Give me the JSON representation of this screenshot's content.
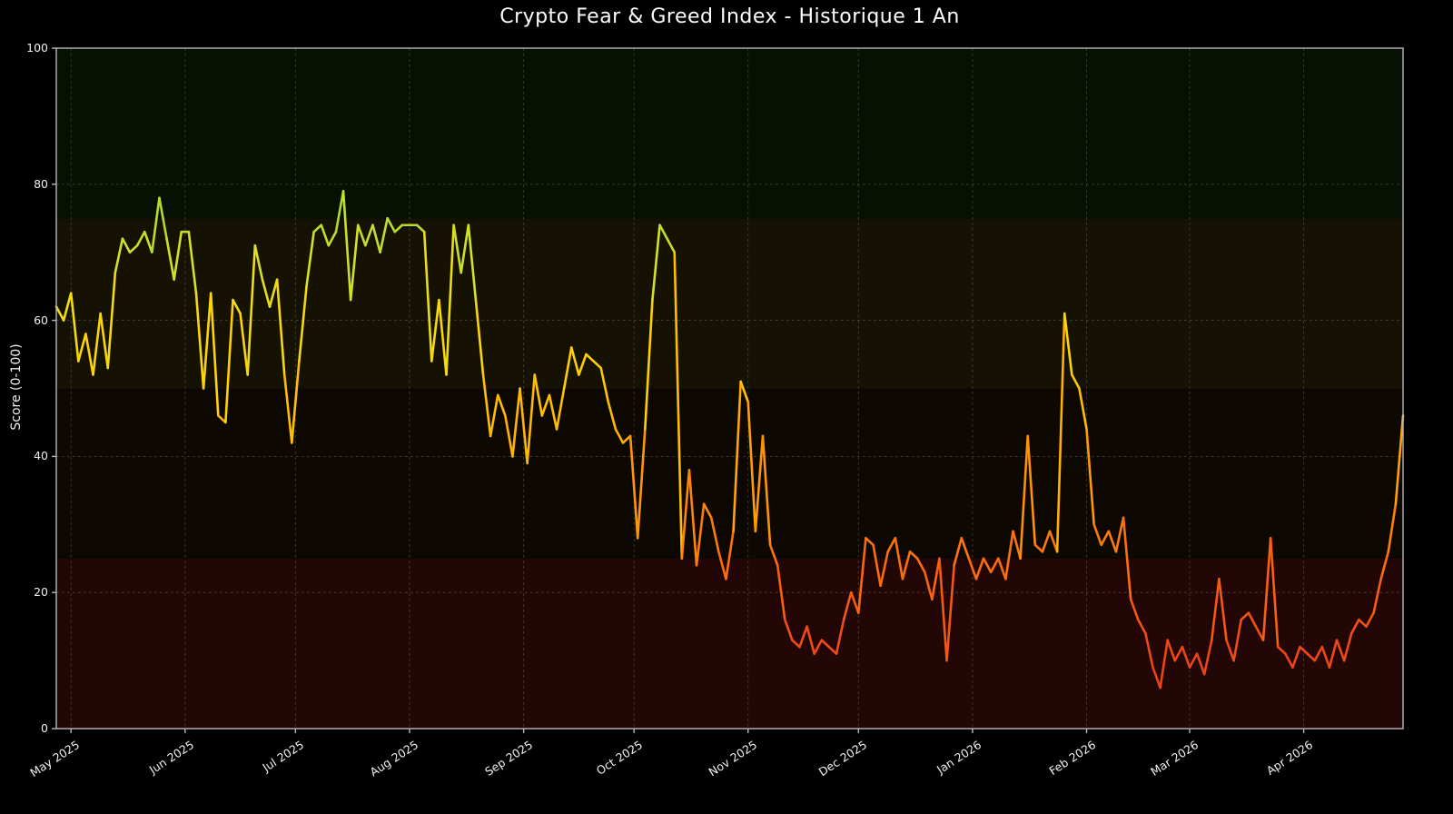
{
  "title": "Crypto Fear & Greed Index - Historique 1 An",
  "chart_data": {
    "type": "line",
    "title": "Crypto Fear & Greed Index - Historique 1 An",
    "xlabel": "",
    "ylabel": "Score (0-100)",
    "ylim": [
      0,
      100
    ],
    "yticks": [
      0,
      20,
      40,
      60,
      80,
      100
    ],
    "grid": true,
    "grid_style": "dashed",
    "legend": "none",
    "domain_days": 366,
    "sample_interval_days": 2,
    "x_months": [
      {
        "label": "May 2025",
        "day": 4
      },
      {
        "label": "Jun 2025",
        "day": 35
      },
      {
        "label": "Jul 2025",
        "day": 65
      },
      {
        "label": "Aug 2025",
        "day": 96
      },
      {
        "label": "Sep 2025",
        "day": 127
      },
      {
        "label": "Oct 2025",
        "day": 157
      },
      {
        "label": "Nov 2025",
        "day": 188
      },
      {
        "label": "Dec 2025",
        "day": 218
      },
      {
        "label": "Jan 2026",
        "day": 249
      },
      {
        "label": "Feb 2026",
        "day": 280
      },
      {
        "label": "Mar 2026",
        "day": 308
      },
      {
        "label": "Apr 2026",
        "day": 339
      }
    ],
    "values": [
      62,
      60,
      64,
      54,
      58,
      52,
      61,
      53,
      67,
      72,
      70,
      71,
      73,
      70,
      78,
      72,
      66,
      73,
      73,
      64,
      50,
      64,
      46,
      45,
      63,
      61,
      52,
      71,
      66,
      62,
      66,
      52,
      42,
      54,
      65,
      73,
      74,
      71,
      73,
      79,
      63,
      74,
      71,
      74,
      70,
      75,
      73,
      74,
      74,
      74,
      73,
      54,
      63,
      52,
      74,
      67,
      74,
      63,
      52,
      43,
      49,
      46,
      40,
      50,
      39,
      52,
      46,
      49,
      44,
      50,
      56,
      52,
      55,
      54,
      53,
      48,
      44,
      42,
      43,
      28,
      44,
      63,
      74,
      72,
      70,
      25,
      38,
      24,
      33,
      31,
      26,
      22,
      29,
      51,
      48,
      29,
      43,
      27,
      24,
      16,
      13,
      12,
      15,
      11,
      13,
      12,
      11,
      16,
      20,
      17,
      28,
      27,
      21,
      26,
      28,
      22,
      26,
      25,
      23,
      19,
      25,
      10,
      24,
      28,
      25,
      22,
      25,
      23,
      25,
      22,
      29,
      25,
      43,
      27,
      26,
      29,
      26,
      61,
      52,
      50,
      44,
      30,
      27,
      29,
      26,
      31,
      19,
      16,
      14,
      9,
      6,
      13,
      10,
      12,
      9,
      11,
      8,
      13,
      22,
      13,
      10,
      16,
      17,
      15,
      13,
      28,
      12,
      11,
      9,
      12,
      11,
      10,
      12,
      9,
      13,
      10,
      14,
      16,
      15,
      17,
      22,
      26,
      33,
      46
    ],
    "background_bands": [
      {
        "from": 0,
        "to": 25,
        "color": "#230707"
      },
      {
        "from": 25,
        "to": 50,
        "color": "#0e0803"
      },
      {
        "from": 50,
        "to": 75,
        "color": "#151204"
      },
      {
        "from": 75,
        "to": 100,
        "color": "#071103"
      }
    ],
    "line_color_stops": [
      [
        0,
        "#e02f1f"
      ],
      [
        15,
        "#f34f16"
      ],
      [
        25,
        "#fb700c"
      ],
      [
        35,
        "#fe9305"
      ],
      [
        45,
        "#ffb702"
      ],
      [
        55,
        "#ffd400"
      ],
      [
        62,
        "#f0dc14"
      ],
      [
        70,
        "#cde228"
      ],
      [
        80,
        "#96d433"
      ],
      [
        100,
        "#2f9e38"
      ]
    ],
    "line_width": 2.6
  },
  "colors": {
    "figure_background": "#000000",
    "axis_spine": "#b8b8b8",
    "grid": "rgba(215,215,190,0.25)",
    "title_text": "#ffffff",
    "tick_text": "#f0f0f0"
  }
}
